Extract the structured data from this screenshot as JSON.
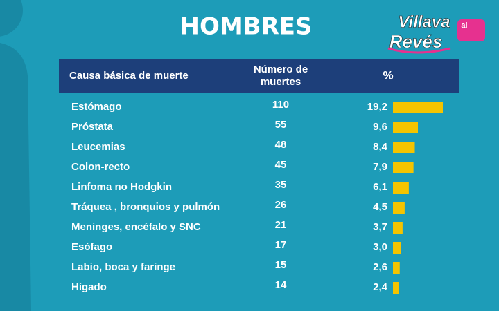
{
  "title": "HOMBRES",
  "logo": {
    "line1": "Villava",
    "badge": "al",
    "line2": "Revés"
  },
  "table": {
    "columns": [
      "Causa básica de muerte",
      "Número de muertes",
      "%"
    ],
    "causes": [
      "Estómago",
      "Próstata",
      "Leucemias",
      "Colon-recto",
      "Linfoma no Hodgkin",
      "Tráquea , bronquios y pulmón",
      "Meninges, encéfalo y SNC",
      "Esófago",
      "Labio, boca y faringe",
      "Hígado"
    ],
    "deaths": [
      110,
      55,
      48,
      45,
      35,
      26,
      21,
      17,
      15,
      14
    ],
    "percent": {
      "values": [
        19.2,
        9.6,
        8.4,
        7.9,
        6.1,
        4.5,
        3.7,
        3.0,
        2.6,
        2.4
      ],
      "value_labels": [
        "19,2",
        "9,6",
        "8,4",
        "7,9",
        "6,1",
        "4,5",
        "3,7",
        "3,0",
        "2,6",
        "2,4"
      ],
      "color": "#f5c400"
    }
  }
}
